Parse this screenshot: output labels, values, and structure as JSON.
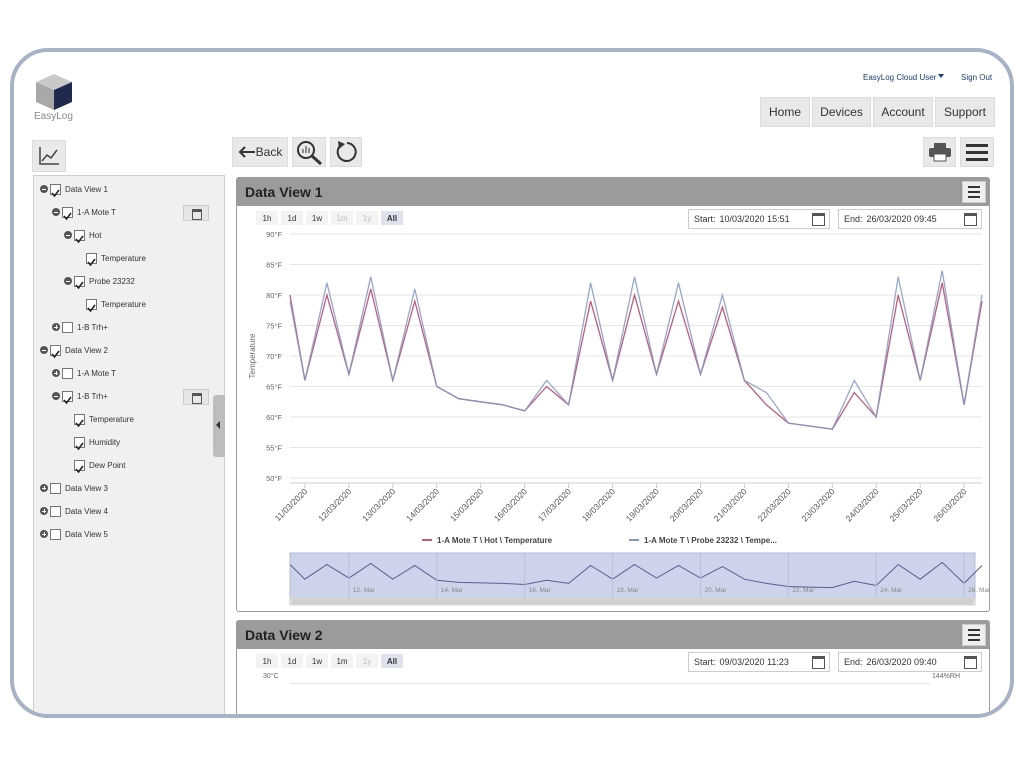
{
  "header": {
    "logo": "EasyLog",
    "user": "EasyLog Cloud User",
    "sign_out": "Sign Out",
    "nav": [
      "Home",
      "Devices",
      "Account",
      "Support"
    ]
  },
  "toolbar": {
    "back": "Back"
  },
  "sidebar": {
    "tree": [
      {
        "label": "Data View 1",
        "checked": true,
        "children": [
          {
            "label": "1-A Mote T",
            "checked": true,
            "calendar": true,
            "children": [
              {
                "label": "Hot",
                "checked": true,
                "children": [
                  {
                    "label": "Temperature",
                    "checked": true
                  }
                ]
              },
              {
                "label": "Probe 23232",
                "checked": true,
                "children": [
                  {
                    "label": "Temperature",
                    "checked": true
                  }
                ]
              }
            ]
          },
          {
            "label": "1-B Trh+",
            "checked": false,
            "collapsed": true
          }
        ]
      },
      {
        "label": "Data View 2",
        "checked": true,
        "children": [
          {
            "label": "1-A Mote T",
            "checked": false,
            "collapsed": true
          },
          {
            "label": "1-B Trh+",
            "checked": true,
            "calendar": true,
            "children": [
              {
                "label": "Temperature",
                "checked": true
              },
              {
                "label": "Humidity",
                "checked": true
              },
              {
                "label": "Dew Point",
                "checked": true
              }
            ]
          }
        ]
      },
      {
        "label": "Data View 3",
        "checked": false,
        "collapsed": true
      },
      {
        "label": "Data View 4",
        "checked": false,
        "collapsed": true
      },
      {
        "label": "Data View 5",
        "checked": false,
        "collapsed": true
      }
    ]
  },
  "panels": [
    {
      "title": "Data View 1",
      "ranges": [
        "1h",
        "1d",
        "1w",
        "1m",
        "1y",
        "All"
      ],
      "disabled": [
        3,
        4
      ],
      "active": 5,
      "start_label": "Start:",
      "start": "10/03/2020 15:51",
      "end_label": "End:",
      "end": "26/03/2020 09:45"
    },
    {
      "title": "Data View 2",
      "ranges": [
        "1h",
        "1d",
        "1w",
        "1m",
        "1y",
        "All"
      ],
      "disabled": [
        4
      ],
      "active": 5,
      "start_label": "Start:",
      "start": "09/03/2020 11:23",
      "end_label": "End:",
      "end": "26/03/2020 09:40",
      "y_label": "30°C",
      "y2_label": "144%RH"
    }
  ],
  "chart_data": {
    "type": "line",
    "y_label": "Temperature",
    "x": [
      "10/03/2020 15:51",
      "11/03/2020 00:00",
      "11/03/2020 12:00",
      "12/03/2020 00:00",
      "12/03/2020 12:00",
      "13/03/2020 00:00",
      "13/03/2020 12:00",
      "14/03/2020 00:00",
      "14/03/2020 12:00",
      "15/03/2020 00:00",
      "15/03/2020 12:00",
      "16/03/2020 00:00",
      "16/03/2020 12:00",
      "17/03/2020 00:00",
      "17/03/2020 12:00",
      "18/03/2020 00:00",
      "18/03/2020 12:00",
      "19/03/2020 00:00",
      "19/03/2020 12:00",
      "20/03/2020 00:00",
      "20/03/2020 12:00",
      "21/03/2020 00:00",
      "21/03/2020 12:00",
      "22/03/2020 00:00",
      "22/03/2020 12:00",
      "23/03/2020 00:00",
      "23/03/2020 12:00",
      "24/03/2020 00:00",
      "24/03/2020 12:00",
      "25/03/2020 00:00",
      "25/03/2020 12:00",
      "26/03/2020 00:00",
      "26/03/2020 09:45"
    ],
    "xlim": [
      "10/03/2020 15:51",
      "26/03/2020 09:45"
    ],
    "xticks": [
      "11/03/2020",
      "12/03/2020",
      "13/03/2020",
      "14/03/2020",
      "15/03/2020",
      "16/03/2020",
      "17/03/2020",
      "18/03/2020",
      "19/03/2020",
      "20/03/2020",
      "21/03/2020",
      "22/03/2020",
      "23/03/2020",
      "24/03/2020",
      "25/03/2020",
      "26/03/2020"
    ],
    "ylim": [
      50,
      90
    ],
    "yticks": [
      {
        "value": 50,
        "label": "50°F"
      },
      {
        "value": 55,
        "label": "55°F"
      },
      {
        "value": 60,
        "label": "60°F"
      },
      {
        "value": 65,
        "label": "65°F"
      },
      {
        "value": 70,
        "label": "70°F"
      },
      {
        "value": 75,
        "label": "75°F"
      },
      {
        "value": 80,
        "label": "80°F"
      },
      {
        "value": 85,
        "label": "85°F"
      },
      {
        "value": 90,
        "label": "90°F"
      }
    ],
    "grid": true,
    "series": [
      {
        "name": "1-A Mote T \\ Hot \\ Temperature",
        "color": "#c25a7b",
        "values": [
          80,
          66,
          80,
          67,
          81,
          66,
          79,
          65,
          63,
          62.5,
          62,
          61,
          65,
          62,
          79,
          66,
          80,
          67,
          79,
          67,
          78,
          66,
          62,
          59,
          58.5,
          58,
          64,
          60,
          80,
          66,
          82,
          62,
          79
        ]
      },
      {
        "name": "1-A Mote T \\ Probe 23232 \\ Tempe...",
        "color": "#8399c8",
        "values": [
          79,
          66,
          82,
          67,
          83,
          66,
          81,
          65,
          63,
          62.5,
          62,
          61,
          66,
          62,
          82,
          66,
          83,
          67,
          82,
          67,
          80,
          66,
          64,
          59,
          58.5,
          58,
          66,
          60,
          83,
          66,
          84,
          62,
          80
        ]
      }
    ],
    "navigator": {
      "ticks": [
        {
          "value": "12/03/2020 00:00",
          "label": "12. Mar"
        },
        {
          "value": "14/03/2020 00:00",
          "label": "14. Mar"
        },
        {
          "value": "16/03/2020 00:00",
          "label": "16. Mar"
        },
        {
          "value": "18/03/2020 00:00",
          "label": "18. Mar"
        },
        {
          "value": "20/03/2020 00:00",
          "label": "20. Mar"
        },
        {
          "value": "22/03/2020 00:00",
          "label": "22. Mar"
        },
        {
          "value": "24/03/2020 00:00",
          "label": "24. Mar"
        },
        {
          "value": "26/03/2020 00:00",
          "label": "26. Mar"
        }
      ]
    }
  }
}
